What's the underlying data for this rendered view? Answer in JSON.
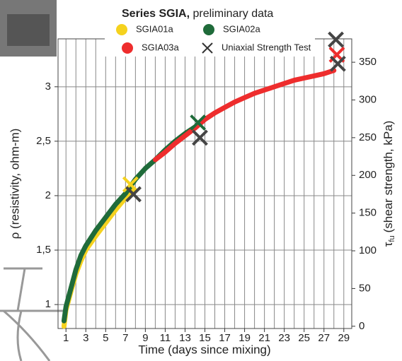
{
  "chart_data": {
    "type": "line",
    "title": "Series SGIA,",
    "subtitle": "preliminary data",
    "xlabel": "Time (days since mixing)",
    "ylabel": "ρ (resistivity, ohm-m)",
    "y2label_symbol": "τ",
    "y2label_subscript": "fu",
    "y2label_text": "(shear strength, kPa)",
    "xlim": [
      0.2,
      29.8
    ],
    "ylim": [
      0.78,
      3.44
    ],
    "y2lim": [
      -3,
      381
    ],
    "xticks": [
      1,
      3,
      5,
      7,
      9,
      11,
      13,
      15,
      17,
      19,
      21,
      23,
      25,
      27,
      29
    ],
    "xgrid": [
      1,
      2,
      3,
      4,
      5,
      6,
      7,
      8,
      9,
      10,
      11,
      12,
      13,
      14,
      15,
      16,
      17,
      18,
      19,
      20,
      21,
      22,
      23,
      24,
      25,
      26,
      27,
      28,
      29
    ],
    "yticks": [
      {
        "value": 1,
        "label": "1"
      },
      {
        "value": 1.5,
        "label": "1,5"
      },
      {
        "value": 2,
        "label": "2"
      },
      {
        "value": 2.5,
        "label": "2,5"
      },
      {
        "value": 3,
        "label": "3"
      }
    ],
    "y2ticks": [
      0,
      50,
      100,
      150,
      200,
      250,
      300,
      350
    ],
    "grid": true,
    "series": [
      {
        "name": "SGIA01a",
        "color": "#f5d21e",
        "x": [
          0.8,
          1,
          1.5,
          2,
          2.5,
          3,
          4,
          5,
          6,
          7,
          7.8
        ],
        "values": [
          0.8,
          0.95,
          1.12,
          1.28,
          1.4,
          1.5,
          1.63,
          1.75,
          1.87,
          1.98,
          2.05
        ]
      },
      {
        "name": "SGIA02a",
        "color": "#1f6b3a",
        "x": [
          0.8,
          1,
          1.5,
          2,
          2.5,
          3,
          4,
          5,
          6,
          7,
          8,
          9,
          10,
          11,
          12,
          13,
          14,
          14.5
        ],
        "values": [
          0.85,
          0.98,
          1.15,
          1.32,
          1.45,
          1.54,
          1.68,
          1.8,
          1.92,
          2.02,
          2.15,
          2.25,
          2.33,
          2.42,
          2.5,
          2.57,
          2.63,
          2.66
        ]
      },
      {
        "name": "SGIA03a",
        "color": "#ee2d2d",
        "x": [
          10,
          11,
          12,
          13,
          14,
          15,
          16,
          17,
          18,
          19,
          20,
          21,
          22,
          23,
          24,
          25,
          26,
          27,
          28
        ],
        "values": [
          2.33,
          2.4,
          2.48,
          2.55,
          2.62,
          2.7,
          2.76,
          2.81,
          2.86,
          2.9,
          2.94,
          2.97,
          3.0,
          3.03,
          3.06,
          3.08,
          3.1,
          3.12,
          3.15
        ]
      },
      {
        "name": "Uniaxial Strength Test",
        "color": "#333333",
        "axis": "y2",
        "x": [
          7.5,
          7.8,
          14.3,
          14.5,
          28.3,
          28.2,
          28.4
        ],
        "values": [
          188,
          175,
          270,
          250,
          360,
          380,
          348
        ],
        "colors": [
          "#f5d21e",
          "#444444",
          "#1f6b3a",
          "#444444",
          "#ee2d2d",
          "#444444",
          "#444444"
        ]
      }
    ]
  }
}
